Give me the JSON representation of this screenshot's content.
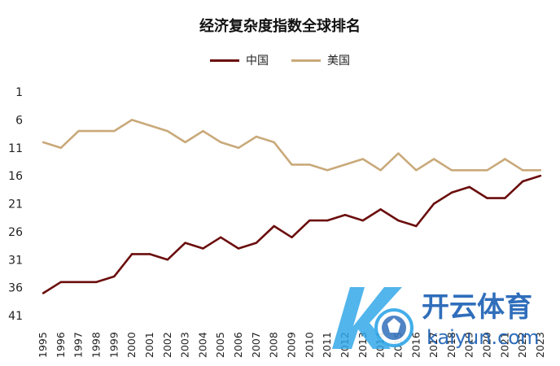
{
  "colors": {
    "china": "#6b0d0d",
    "usa": "#c9a97a",
    "watermark_blue": "#2fa6e8",
    "watermark_dark": "#1a5fb4"
  },
  "chart_data": {
    "type": "line",
    "title": "经济复杂度指数全球排名",
    "xlabel": "",
    "ylabel": "",
    "x": [
      "1995",
      "1996",
      "1997",
      "1998",
      "1999",
      "2000",
      "2001",
      "2002",
      "2003",
      "2004",
      "2005",
      "2006",
      "2007",
      "2008",
      "2009",
      "2010",
      "2011",
      "2012",
      "2013",
      "2014",
      "2015",
      "2016",
      "2017",
      "2018",
      "2019",
      "2020",
      "2021",
      "2022",
      "2023"
    ],
    "ylim": [
      1,
      41
    ],
    "y_inverted": true,
    "y_ticks": [
      1,
      6,
      11,
      16,
      21,
      26,
      31,
      36,
      41
    ],
    "legend_position": "top",
    "grid": false,
    "series": [
      {
        "name": "中国",
        "color_key": "china",
        "values": [
          37,
          35,
          35,
          35,
          34,
          30,
          30,
          31,
          28,
          29,
          27,
          29,
          28,
          25,
          27,
          24,
          24,
          23,
          24,
          22,
          24,
          25,
          21,
          19,
          18,
          20,
          20,
          17,
          16
        ]
      },
      {
        "name": "美国",
        "color_key": "usa",
        "values": [
          10,
          11,
          8,
          8,
          8,
          6,
          7,
          8,
          10,
          8,
          10,
          11,
          9,
          10,
          14,
          14,
          15,
          14,
          13,
          15,
          12,
          15,
          13,
          15,
          15,
          15,
          13,
          15,
          15
        ]
      }
    ]
  },
  "watermark": {
    "logo_letter": "K",
    "brand_cn": "开云体育",
    "brand_en": "kaiyun.com"
  }
}
